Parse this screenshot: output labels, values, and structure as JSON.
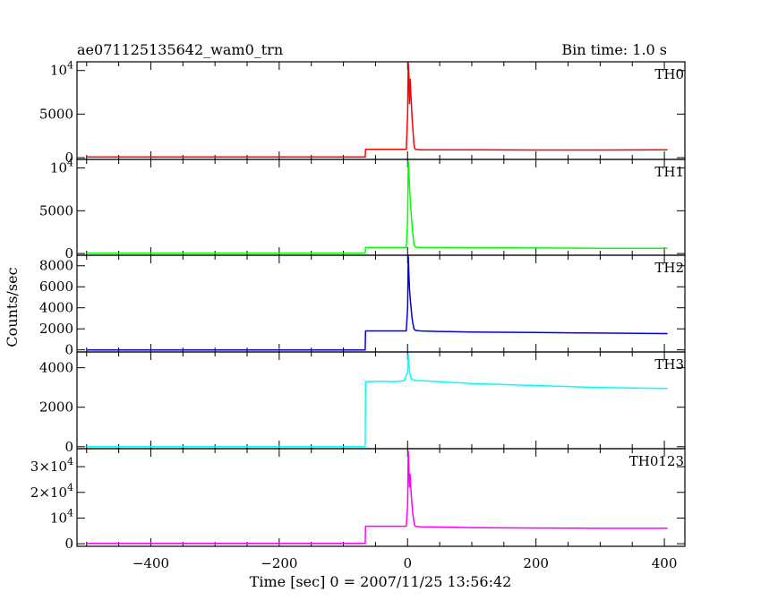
{
  "header": {
    "title": "ae071125135642_wam0_trn",
    "bin_time": "Bin time: 1.0 s"
  },
  "axes": {
    "ylabel": "Counts/sec",
    "xlabel": "Time [sec] 0 = 2007/11/25 13:56:42",
    "xlim": [
      -515,
      432
    ],
    "xticks": [
      -400,
      -200,
      0,
      200,
      400
    ]
  },
  "chart_data": [
    {
      "type": "line",
      "name": "TH0",
      "color": "#ff0000",
      "ylim": [
        -200,
        11000
      ],
      "yticks": [
        {
          "v": 0,
          "label": "0"
        },
        {
          "v": 5000,
          "label": "5000"
        },
        {
          "v": 10000,
          "label": "10^4"
        }
      ],
      "x": [
        -500,
        -66,
        -65.5,
        -10,
        -2,
        0,
        1,
        2,
        3,
        4,
        5,
        6,
        7,
        8,
        9,
        10,
        11,
        12,
        20,
        50,
        100,
        200,
        300,
        405
      ],
      "y": [
        80,
        80,
        950,
        950,
        950,
        5000,
        11000,
        9500,
        6200,
        9000,
        7500,
        6000,
        4500,
        3500,
        2500,
        1500,
        1100,
        950,
        900,
        900,
        900,
        880,
        880,
        900
      ]
    },
    {
      "type": "line",
      "name": "TH1",
      "color": "#00ff00",
      "ylim": [
        -200,
        11000
      ],
      "yticks": [
        {
          "v": 0,
          "label": "0"
        },
        {
          "v": 5000,
          "label": "5000"
        },
        {
          "v": 10000,
          "label": "10^4"
        }
      ],
      "x": [
        -500,
        -66,
        -65.5,
        -10,
        -2,
        0,
        1,
        2,
        3,
        4,
        5,
        6,
        7,
        8,
        9,
        10,
        12,
        20,
        50,
        100,
        200,
        300,
        405
      ],
      "y": [
        50,
        50,
        700,
        700,
        700,
        4000,
        10800,
        9800,
        7800,
        6500,
        5400,
        4200,
        3200,
        2400,
        1700,
        1100,
        750,
        700,
        700,
        680,
        650,
        620,
        620
      ]
    },
    {
      "type": "line",
      "name": "TH2",
      "color": "#0000dd",
      "ylim": [
        -200,
        9000
      ],
      "yticks": [
        {
          "v": 0,
          "label": "0"
        },
        {
          "v": 2000,
          "label": "2000"
        },
        {
          "v": 4000,
          "label": "4000"
        },
        {
          "v": 6000,
          "label": "6000"
        },
        {
          "v": 8000,
          "label": "8000"
        }
      ],
      "x": [
        -500,
        -66,
        -65.5,
        -10,
        -2,
        0,
        1,
        2,
        3,
        4,
        5,
        6,
        7,
        8,
        9,
        10,
        12,
        20,
        50,
        100,
        200,
        300,
        405
      ],
      "y": [
        0,
        0,
        1800,
        1800,
        1800,
        4000,
        9000,
        7200,
        5800,
        5000,
        4300,
        3600,
        3000,
        2600,
        2300,
        2000,
        1850,
        1800,
        1750,
        1700,
        1650,
        1600,
        1550
      ]
    },
    {
      "type": "line",
      "name": "TH3",
      "color": "#00ffff",
      "ylim": [
        -100,
        4800
      ],
      "yticks": [
        {
          "v": 0,
          "label": "0"
        },
        {
          "v": 2000,
          "label": "2000"
        },
        {
          "v": 4000,
          "label": "4000"
        }
      ],
      "x": [
        -500,
        -66,
        -65.5,
        -40,
        -20,
        -5,
        0,
        1,
        2,
        3,
        5,
        8,
        12,
        20,
        50,
        100,
        200,
        300,
        405
      ],
      "y": [
        0,
        0,
        3300,
        3320,
        3300,
        3350,
        3800,
        4700,
        4200,
        3800,
        3500,
        3400,
        3350,
        3350,
        3300,
        3200,
        3100,
        3000,
        2950
      ]
    },
    {
      "type": "line",
      "name": "TH0123",
      "color": "#ff00ff",
      "ylim": [
        -1000,
        37000
      ],
      "yticks": [
        {
          "v": 0,
          "label": "0"
        },
        {
          "v": 10000,
          "label": "10^4"
        },
        {
          "v": 20000,
          "label": "2×10^4"
        },
        {
          "v": 30000,
          "label": "3×10^4"
        }
      ],
      "x": [
        -500,
        -66,
        -65.5,
        -10,
        -2,
        0,
        1,
        2,
        3,
        4,
        5,
        6,
        7,
        8,
        9,
        10,
        11,
        12,
        20,
        50,
        100,
        200,
        300,
        405
      ],
      "y": [
        150,
        150,
        6800,
        6800,
        6800,
        15000,
        36000,
        30000,
        22000,
        27000,
        22000,
        18000,
        15000,
        12000,
        10000,
        8500,
        7200,
        6800,
        6600,
        6500,
        6300,
        6100,
        6000,
        6000
      ]
    }
  ]
}
